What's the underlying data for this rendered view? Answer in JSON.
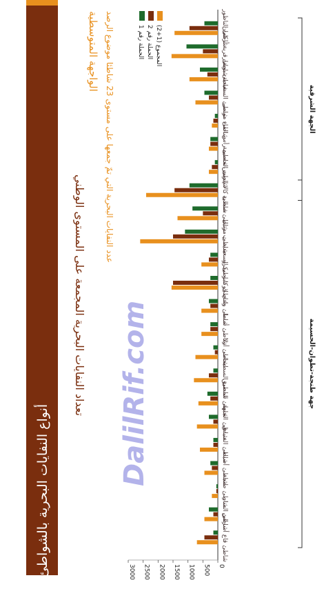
{
  "header": {
    "title": "أنواع النفايات البحرية بالشواطئ",
    "subtitle": "تعداد النفايات البحرية المجمعة على المستوى الوطني",
    "section": "الواجهة المتوسطية",
    "description": "عدد النفايات البحرية التي تمّ جمعها على مستوى 23 شاطئا موضوع الرصد"
  },
  "watermark": "DalilRif.com",
  "colors": {
    "title_bar": "#7a2e0e",
    "series1": "#1e6b2c",
    "series2": "#7a2e0e",
    "series3": "#e8901e",
    "accent": "#e8901e"
  },
  "chart_data": {
    "type": "bar",
    "orientation": "horizontal",
    "categories": [
      "شاطئ الناظور",
      "شاطئ قرية أركمان",
      "شاطئ بويفار",
      "شاطئ السعيدية",
      "شاطئ موسى",
      "شاطئ رأس الماء",
      "شاطئ الحسيمة",
      "شاطئ كالا إيريس",
      "شاطئ صبادية",
      "شاطئ مرتيل",
      "شاطئ السعيدية ب",
      "شاطئ كابو نيكرو",
      "شاطئ وادي لاو",
      "شاطئ أمسا",
      "شاطئ أزلا",
      "شاطئ السطيحات",
      "شاطئ المضيق",
      "شاطئ الجبهة",
      "شاطئ الفنيدق",
      "شاطئ أصيلة",
      "شاطئ طنجة",
      "شاطئ المنار",
      "شاطئ قاع أسراس"
    ],
    "series": [
      {
        "name": "الحملة رقم 1",
        "values": [
          450,
          1050,
          600,
          450,
          100,
          250,
          100,
          950,
          850,
          1100,
          250,
          250,
          300,
          250,
          150,
          150,
          350,
          300,
          150,
          250,
          50,
          300,
          150
        ]
      },
      {
        "name": "الحملة رقم 2",
        "values": [
          950,
          500,
          350,
          300,
          150,
          250,
          200,
          1450,
          500,
          1500,
          300,
          1500,
          250,
          250,
          100,
          300,
          250,
          150,
          150,
          200,
          50,
          150,
          450
        ]
      },
      {
        "name": "المجموع (1+2)",
        "values": [
          1450,
          1550,
          950,
          750,
          200,
          300,
          300,
          2400,
          1350,
          2600,
          550,
          1550,
          550,
          550,
          750,
          800,
          650,
          700,
          600,
          450,
          200,
          450,
          700
        ]
      }
    ],
    "xlim": [
      0,
      3000
    ],
    "ticks": [
      0,
      500,
      1000,
      1500,
      2000,
      2500,
      3000
    ],
    "groups": [
      {
        "label": "الجهة الشرقية",
        "from": 0,
        "to": 7
      },
      {
        "label": "جهة طنجة-تطوان-الحسيمة",
        "from": 7,
        "to": 22
      }
    ]
  }
}
